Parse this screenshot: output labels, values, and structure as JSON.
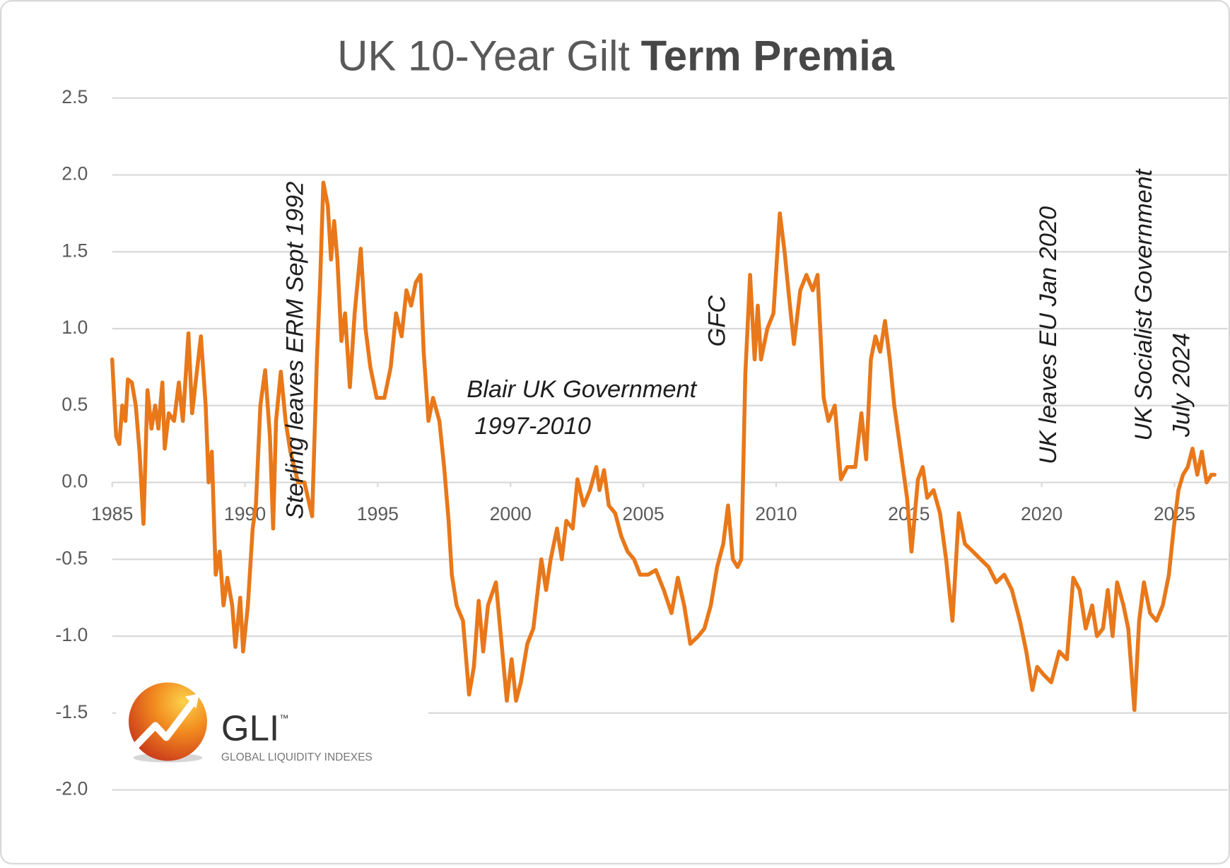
{
  "chart_data": {
    "type": "line",
    "title": [
      "UK 10-Year Gilt",
      "Term Premia"
    ],
    "color": "#e8781a",
    "grid": true,
    "xlim": [
      1985,
      2026.5
    ],
    "xticks": [
      1985,
      1990,
      1995,
      2000,
      2005,
      2010,
      2015,
      2020,
      2025
    ],
    "ylim": [
      -2.0,
      2.5
    ],
    "yticks": [
      2.5,
      {
        "value": 2,
        "label": "2.0"
      },
      1.5,
      {
        "value": 1,
        "label": "1.0"
      },
      0.5,
      {
        "value": 0,
        "label": "0.0"
      },
      -0.5,
      {
        "value": -1,
        "label": "-1.0"
      },
      -1.5,
      {
        "value": -2,
        "label": "-2.0"
      }
    ],
    "x": [
      1985.0,
      1985.15,
      1985.27,
      1985.38,
      1985.5,
      1985.59,
      1985.74,
      1985.89,
      1986.03,
      1986.18,
      1986.33,
      1986.48,
      1986.62,
      1986.74,
      1986.89,
      1986.98,
      1987.13,
      1987.33,
      1987.51,
      1987.66,
      1987.87,
      1988.01,
      1988.34,
      1988.52,
      1988.63,
      1988.75,
      1988.9,
      1989.05,
      1989.19,
      1989.34,
      1989.52,
      1989.64,
      1989.82,
      1989.93,
      1990.11,
      1990.29,
      1990.41,
      1990.58,
      1990.76,
      1990.94,
      1991.06,
      1991.17,
      1991.35,
      1991.53,
      1991.71,
      1992.0,
      1992.24,
      1992.53,
      1992.71,
      1992.83,
      1992.95,
      1993.12,
      1993.24,
      1993.36,
      1993.48,
      1993.63,
      1993.77,
      1993.95,
      1994.13,
      1994.36,
      1994.54,
      1994.72,
      1994.96,
      1995.25,
      1995.49,
      1995.69,
      1995.9,
      1996.08,
      1996.26,
      1996.43,
      1996.61,
      1996.73,
      1996.91,
      1997.08,
      1997.32,
      1997.5,
      1997.67,
      1997.79,
      1997.97,
      1998.21,
      1998.44,
      1998.62,
      1998.8,
      1998.97,
      1999.15,
      1999.45,
      1999.68,
      1999.86,
      2000.04,
      2000.21,
      2000.39,
      2000.63,
      2000.86,
      2001.16,
      2001.34,
      2001.51,
      2001.75,
      2001.93,
      2002.1,
      2002.34,
      2002.52,
      2002.75,
      2002.99,
      2003.23,
      2003.35,
      2003.52,
      2003.7,
      2003.94,
      2004.17,
      2004.41,
      2004.65,
      2004.88,
      2005.18,
      2005.47,
      2005.77,
      2006.06,
      2006.3,
      2006.54,
      2006.77,
      2007.07,
      2007.3,
      2007.54,
      2007.78,
      2008.01,
      2008.19,
      2008.37,
      2008.55,
      2008.69,
      2008.84,
      2009.02,
      2009.19,
      2009.31,
      2009.43,
      2009.67,
      2009.9,
      2010.14,
      2010.32,
      2010.49,
      2010.67,
      2010.91,
      2011.14,
      2011.38,
      2011.56,
      2011.79,
      2011.97,
      2012.21,
      2012.44,
      2012.68,
      2012.98,
      2013.21,
      2013.39,
      2013.57,
      2013.74,
      2013.92,
      2014.1,
      2014.28,
      2014.45,
      2014.69,
      2014.93,
      2015.1,
      2015.34,
      2015.52,
      2015.69,
      2015.93,
      2016.17,
      2016.4,
      2016.64,
      2016.88,
      2017.11,
      2017.41,
      2017.7,
      2018.0,
      2018.29,
      2018.59,
      2018.88,
      2019.18,
      2019.42,
      2019.65,
      2019.83,
      2020.07,
      2020.36,
      2020.66,
      2020.95,
      2021.19,
      2021.43,
      2021.66,
      2021.9,
      2022.08,
      2022.31,
      2022.49,
      2022.67,
      2022.84,
      2023.08,
      2023.26,
      2023.49,
      2023.67,
      2023.85,
      2024.08,
      2024.32,
      2024.56,
      2024.79,
      2024.97,
      2025.15,
      2025.32,
      2025.5,
      2025.68,
      2025.86,
      2026.03,
      2026.21,
      2026.39,
      2026.51
    ],
    "values": [
      0.8,
      0.3,
      0.25,
      0.5,
      0.4,
      0.67,
      0.65,
      0.5,
      0.2,
      -0.27,
      0.6,
      0.35,
      0.5,
      0.35,
      0.65,
      0.22,
      0.45,
      0.4,
      0.65,
      0.4,
      0.97,
      0.45,
      0.95,
      0.5,
      0.0,
      0.2,
      -0.6,
      -0.45,
      -0.8,
      -0.62,
      -0.8,
      -1.07,
      -0.75,
      -1.1,
      -0.8,
      -0.3,
      -0.15,
      0.5,
      0.73,
      0.3,
      -0.3,
      0.4,
      0.72,
      0.4,
      0.2,
      0.0,
      0.0,
      -0.22,
      0.8,
      1.3,
      1.95,
      1.8,
      1.45,
      1.7,
      1.45,
      0.92,
      1.1,
      0.62,
      1.1,
      1.52,
      1.0,
      0.75,
      0.55,
      0.55,
      0.75,
      1.1,
      0.95,
      1.25,
      1.15,
      1.3,
      1.35,
      0.85,
      0.4,
      0.55,
      0.4,
      0.1,
      -0.25,
      -0.6,
      -0.8,
      -0.9,
      -1.38,
      -1.2,
      -0.77,
      -1.1,
      -0.8,
      -0.65,
      -1.08,
      -1.42,
      -1.15,
      -1.42,
      -1.3,
      -1.05,
      -0.95,
      -0.5,
      -0.7,
      -0.5,
      -0.3,
      -0.5,
      -0.25,
      -0.3,
      0.02,
      -0.15,
      -0.05,
      0.1,
      -0.05,
      0.08,
      -0.15,
      -0.2,
      -0.35,
      -0.45,
      -0.5,
      -0.6,
      -0.6,
      -0.57,
      -0.7,
      -0.85,
      -0.62,
      -0.8,
      -1.05,
      -1.0,
      -0.95,
      -0.8,
      -0.55,
      -0.4,
      -0.15,
      -0.5,
      -0.55,
      -0.5,
      0.7,
      1.35,
      0.8,
      1.15,
      0.8,
      1.0,
      1.1,
      1.75,
      1.5,
      1.2,
      0.9,
      1.25,
      1.35,
      1.25,
      1.35,
      0.55,
      0.4,
      0.5,
      0.02,
      0.1,
      0.1,
      0.45,
      0.15,
      0.8,
      0.95,
      0.85,
      1.05,
      0.8,
      0.5,
      0.2,
      -0.1,
      -0.45,
      0.02,
      0.1,
      -0.1,
      -0.05,
      -0.2,
      -0.5,
      -0.9,
      -0.2,
      -0.4,
      -0.45,
      -0.5,
      -0.55,
      -0.65,
      -0.6,
      -0.7,
      -0.9,
      -1.1,
      -1.35,
      -1.2,
      -1.25,
      -1.3,
      -1.1,
      -1.15,
      -0.62,
      -0.7,
      -0.95,
      -0.8,
      -1.0,
      -0.95,
      -0.7,
      -1.0,
      -0.65,
      -0.8,
      -0.95,
      -1.48,
      -0.9,
      -0.65,
      -0.85,
      -0.9,
      -0.8,
      -0.6,
      -0.3,
      -0.05,
      0.05,
      0.1,
      0.22,
      0.05,
      0.2,
      0.0,
      0.05,
      0.05
    ],
    "annotations": [
      "Sterling leaves ERM Sept 1992",
      "GFC",
      "Blair UK Government",
      "1997-2010",
      "UK leaves EU Jan 2020",
      "UK Socialist Government",
      "July 2024"
    ],
    "logo": {
      "name": "GLI",
      "mark": "™",
      "tagline": "GLOBAL LIQUIDITY INDEXES"
    }
  }
}
